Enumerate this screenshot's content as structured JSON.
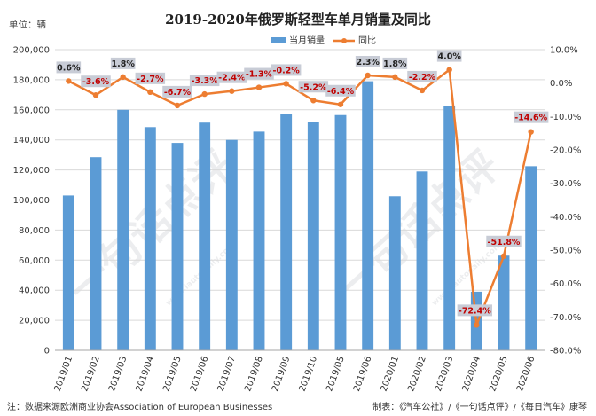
{
  "chart_data": {
    "type": "bar+line",
    "title": "2019-2020年俄罗斯轻型车单月销量及同比",
    "unit_label": "单位：辆",
    "categories": [
      "2019/01",
      "2019/02",
      "2019/03",
      "2019/04",
      "2019/05",
      "2019/06",
      "2019/07",
      "2019/08",
      "2019/09",
      "2019/10",
      "2019/05",
      "2019/06",
      "2020/01",
      "2020/02",
      "2020/03",
      "2020/04",
      "2020/05",
      "2020/06"
    ],
    "series": [
      {
        "name": "当月销量",
        "type": "bar",
        "axis": "left",
        "color": "#5b9bd5",
        "values": [
          103000,
          128500,
          160000,
          148500,
          138000,
          151500,
          140000,
          145500,
          157000,
          152000,
          156500,
          179000,
          102500,
          119000,
          162500,
          39000,
          63000,
          122500
        ]
      },
      {
        "name": "同比",
        "type": "line",
        "axis": "right",
        "color": "#ed7d31",
        "values": [
          0.6,
          -3.6,
          1.8,
          -2.7,
          -6.7,
          -3.3,
          -2.4,
          -1.3,
          -0.2,
          -5.2,
          -6.4,
          2.3,
          1.8,
          -2.2,
          4.0,
          -72.4,
          -51.8,
          -14.6
        ],
        "labels": [
          "0.6%",
          "-3.6%",
          "1.8%",
          "-2.7%",
          "-6.7%",
          "-3.3%",
          "-2.4%",
          "-1.3%",
          "-0.2%",
          "-5.2%",
          "-6.4%",
          "2.3%",
          "1.8%",
          "-2.2%",
          "4.0%",
          "-72.4%",
          "-51.8%",
          "-14.6%"
        ]
      }
    ],
    "y_left": {
      "min": 0,
      "max": 200000,
      "step": 20000,
      "ticks": [
        "0",
        "20,000",
        "40,000",
        "60,000",
        "80,000",
        "100,000",
        "120,000",
        "140,000",
        "160,000",
        "180,000",
        "200,000"
      ]
    },
    "y_right": {
      "min": -80,
      "max": 10,
      "step": 10,
      "ticks": [
        "-80.0%",
        "-70.0%",
        "-60.0%",
        "-50.0%",
        "-40.0%",
        "-30.0%",
        "-20.0%",
        "-10.0%",
        "0.0%",
        "10.0%"
      ]
    },
    "grid": true,
    "legend_position": "top-right"
  },
  "footer": {
    "source": "注：数据来源欧洲商业协会Association of European Businesses",
    "credit": "制表：《汽车公社》/《一句话点评》/《每日汽车》康琴"
  },
  "watermark": {
    "text": "一句话点评",
    "url": "www.iautodaily.com"
  }
}
